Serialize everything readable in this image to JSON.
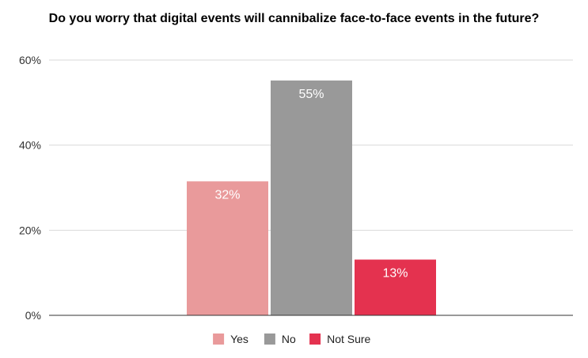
{
  "chart_data": {
    "type": "bar",
    "title": "Do you worry that digital events will cannibalize face-to-face events in the future?",
    "xlabel": "",
    "ylabel": "",
    "ylim": [
      0,
      60
    ],
    "yticks": [
      "0%",
      "20%",
      "40%",
      "60%"
    ],
    "grid": true,
    "legend_position": "bottom",
    "series": [
      {
        "name": "Yes",
        "value": 31.5,
        "label": "32%",
        "color": "#E99A9B"
      },
      {
        "name": "No",
        "value": 55.2,
        "label": "55%",
        "color": "#999999"
      },
      {
        "name": "Not Sure",
        "value": 13.1,
        "label": "13%",
        "color": "#E4324F"
      }
    ]
  }
}
